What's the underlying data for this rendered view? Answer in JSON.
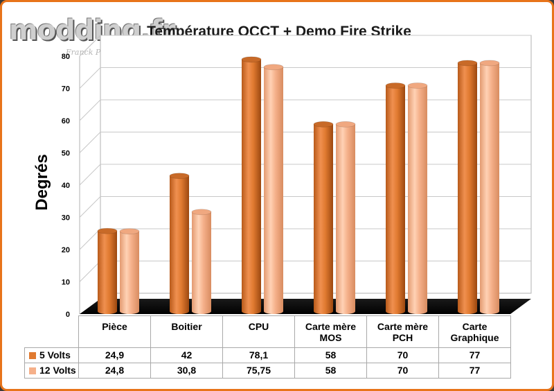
{
  "logo": {
    "text": "modding.fr",
    "signature": "Franck Powel"
  },
  "colors": {
    "series_5v": "#e07a30",
    "series_12v": "#f5b08a",
    "frame": "#e8741a"
  },
  "chart_data": {
    "type": "bar",
    "title": "Température OCCT + Demo Fire Strike",
    "ylabel": "Degrés",
    "xlabel": "",
    "ylim": [
      0,
      80
    ],
    "yticks": [
      0,
      10,
      20,
      30,
      40,
      50,
      60,
      70,
      80
    ],
    "grid": true,
    "categories": [
      "Pièce",
      "Boitier",
      "CPU",
      "Carte mère MOS",
      "Carte mère PCH",
      "Carte Graphique"
    ],
    "series": [
      {
        "name": "5 Volts",
        "values": [
          24.9,
          42,
          78.1,
          58,
          70,
          77
        ],
        "labels": [
          "24,9",
          "42",
          "78,1",
          "58",
          "70",
          "77"
        ]
      },
      {
        "name": "12 Volts",
        "values": [
          24.8,
          30.8,
          75.75,
          58,
          70,
          77
        ],
        "labels": [
          "24,8",
          "30,8",
          "75,75",
          "58",
          "70",
          "77"
        ]
      }
    ],
    "category_lines": [
      [
        "Pièce"
      ],
      [
        "Boitier"
      ],
      [
        "CPU"
      ],
      [
        "Carte mère",
        "MOS"
      ],
      [
        "Carte mère",
        "PCH"
      ],
      [
        "Carte",
        "Graphique"
      ]
    ]
  }
}
